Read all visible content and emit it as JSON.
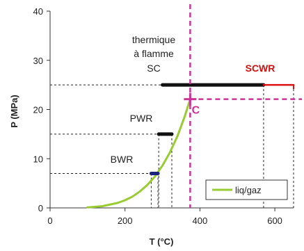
{
  "chart_data": {
    "type": "line",
    "xlabel": "T (°C)",
    "ylabel": "P (MPa)",
    "xlim": [
      0,
      650
    ],
    "ylim": [
      0,
      40
    ],
    "x_ticks": [
      0,
      200,
      400,
      600
    ],
    "y_ticks": [
      0,
      10,
      20,
      30,
      40
    ],
    "grid": false,
    "legend_position": "bottom-right",
    "colors": {
      "curve": "#99cc33",
      "critical": "#cc3399",
      "scwr": "#dd1111",
      "bars": "#111111",
      "bwr_bar": "#1a237e",
      "dashed": "#222222"
    },
    "series": [
      {
        "name": "liq/gaz",
        "x": [
          100,
          140,
          180,
          200,
          220,
          240,
          260,
          280,
          300,
          320,
          340,
          360,
          374
        ],
        "y": [
          0.1,
          0.36,
          1.0,
          1.55,
          2.3,
          3.35,
          4.7,
          6.4,
          8.6,
          11.3,
          14.6,
          18.7,
          22.1
        ]
      }
    ],
    "critical_point": {
      "x": 374,
      "y": 22.1,
      "label": "C"
    },
    "ranges": [
      {
        "name": "thermique à flamme SC",
        "x_start": 300,
        "x_end": 570,
        "y": 25,
        "color": "bars"
      },
      {
        "name": "SCWR",
        "x_start": 570,
        "x_end": 650,
        "y": 25,
        "color": "scwr"
      },
      {
        "name": "PWR",
        "x_start": 290,
        "x_end": 325,
        "y": 15,
        "color": "bars"
      },
      {
        "name": "BWR",
        "x_start": 270,
        "x_end": 288,
        "y": 7,
        "color": "bwr_bar"
      }
    ],
    "annotations": {
      "thermique_line1": "thermique",
      "thermique_line2": "à flamme",
      "thermique_line3": "SC",
      "scwr": "SCWR",
      "pwr": "PWR",
      "bwr": "BWR",
      "critical": "C"
    }
  }
}
